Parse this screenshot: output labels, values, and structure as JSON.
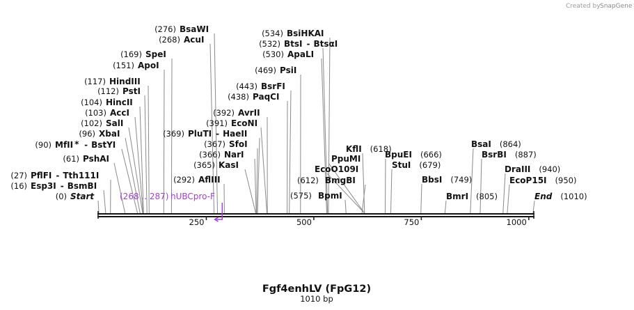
{
  "credit": {
    "text": "Created by",
    "brand": "SnapGene"
  },
  "plasmid": {
    "name": "Fgf4enhLV (FpG12)",
    "length_label": "1010 bp",
    "length": 1010
  },
  "ruler": {
    "ticks": [
      {
        "value": 250,
        "label": "250"
      },
      {
        "value": 500,
        "label": "500"
      },
      {
        "value": 750,
        "label": "750"
      },
      {
        "value": 1000,
        "label": "1000"
      }
    ]
  },
  "feature": {
    "name": "hUBCpro-F",
    "range_label": "(268 .. 287)",
    "start": 268,
    "end": 287,
    "color": "#a040d0"
  },
  "sites": [
    {
      "name": "BsaWI",
      "pos": "(276)",
      "cut": 276,
      "star": false,
      "alt": ""
    },
    {
      "name": "AcuI",
      "pos": "(268)",
      "cut": 268,
      "star": false,
      "alt": ""
    },
    {
      "name": "SpeI",
      "pos": "(169)",
      "cut": 169,
      "star": false,
      "alt": ""
    },
    {
      "name": "ApoI",
      "pos": "(151)",
      "cut": 151,
      "star": false,
      "alt": ""
    },
    {
      "name": "HindIII",
      "pos": "(117)",
      "cut": 117,
      "star": false,
      "alt": ""
    },
    {
      "name": "PstI",
      "pos": "(112)",
      "cut": 112,
      "star": false,
      "alt": ""
    },
    {
      "name": "HincII",
      "pos": "(104)",
      "cut": 104,
      "star": false,
      "alt": ""
    },
    {
      "name": "AccI",
      "pos": "(103)",
      "cut": 103,
      "star": false,
      "alt": ""
    },
    {
      "name": "SalI",
      "pos": "(102)",
      "cut": 102,
      "star": false,
      "alt": ""
    },
    {
      "name": "XbaI",
      "pos": "(96)",
      "cut": 96,
      "star": false,
      "alt": ""
    },
    {
      "name": "MfII",
      "pos": "(90)",
      "cut": 90,
      "star": true,
      "alt": "BstYI"
    },
    {
      "name": "PshAI",
      "pos": "(61)",
      "cut": 61,
      "star": false,
      "alt": ""
    },
    {
      "name": "PflFI",
      "pos": "(27)",
      "cut": 27,
      "star": false,
      "alt": "Tth111I"
    },
    {
      "name": "Esp3I",
      "pos": "(16)",
      "cut": 16,
      "star": false,
      "alt": "BsmBI"
    },
    {
      "name": "Start",
      "pos": "(0)",
      "cut": 0,
      "star": false,
      "alt": ""
    },
    {
      "name": "PluTI",
      "pos": "(369)",
      "cut": 369,
      "star": false,
      "alt": "HaeII"
    },
    {
      "name": "AflIII",
      "pos": "(292)",
      "cut": 292,
      "star": false,
      "alt": ""
    },
    {
      "name": "AvrII",
      "pos": "(392)",
      "cut": 392,
      "star": false,
      "alt": ""
    },
    {
      "name": "EcoNI",
      "pos": "(391)",
      "cut": 391,
      "star": false,
      "alt": ""
    },
    {
      "name": "SfoI",
      "pos": "(367)",
      "cut": 367,
      "star": false,
      "alt": ""
    },
    {
      "name": "NarI",
      "pos": "(366)",
      "cut": 366,
      "star": false,
      "alt": ""
    },
    {
      "name": "KasI",
      "pos": "(365)",
      "cut": 365,
      "star": false,
      "alt": ""
    },
    {
      "name": "BsiHKAI",
      "pos": "(534)",
      "cut": 534,
      "star": false,
      "alt": ""
    },
    {
      "name": "BtsI",
      "pos": "(532)",
      "cut": 532,
      "star": false,
      "alt": "BtsαI"
    },
    {
      "name": "ApaLI",
      "pos": "(530)",
      "cut": 530,
      "star": false,
      "alt": ""
    },
    {
      "name": "PsiI",
      "pos": "(469)",
      "cut": 469,
      "star": false,
      "alt": ""
    },
    {
      "name": "BsrFI",
      "pos": "(443)",
      "cut": 443,
      "star": false,
      "alt": ""
    },
    {
      "name": "PaqCI",
      "pos": "(438)",
      "cut": 438,
      "star": false,
      "alt": ""
    },
    {
      "name": "KflI",
      "pos": "(618)",
      "cut": 618,
      "star": false,
      "alt": ""
    },
    {
      "name": "PpuMI",
      "pos": "",
      "cut": 618,
      "star": false,
      "alt": ""
    },
    {
      "name": "EcoO109I",
      "pos": "",
      "cut": 618,
      "star": false,
      "alt": ""
    },
    {
      "name": "BmgBI",
      "pos": "(612)",
      "cut": 612,
      "star": false,
      "alt": ""
    },
    {
      "name": "BpmI",
      "pos": "(575)",
      "cut": 575,
      "star": false,
      "alt": ""
    },
    {
      "name": "BpuEI",
      "pos": "(666)",
      "cut": 666,
      "star": false,
      "alt": ""
    },
    {
      "name": "StuI",
      "pos": "(679)",
      "cut": 679,
      "star": false,
      "alt": ""
    },
    {
      "name": "BbsI",
      "pos": "(749)",
      "cut": 749,
      "star": false,
      "alt": ""
    },
    {
      "name": "BmrI",
      "pos": "(805)",
      "cut": 805,
      "star": false,
      "alt": ""
    },
    {
      "name": "BsaI",
      "pos": "(864)",
      "cut": 864,
      "star": false,
      "alt": ""
    },
    {
      "name": "BsrBI",
      "pos": "(887)",
      "cut": 887,
      "star": false,
      "alt": ""
    },
    {
      "name": "DraIII",
      "pos": "(940)",
      "cut": 940,
      "star": false,
      "alt": ""
    },
    {
      "name": "EcoP15I",
      "pos": "(950)",
      "cut": 950,
      "star": false,
      "alt": ""
    },
    {
      "name": "End",
      "pos": "(1010)",
      "cut": 1010,
      "star": false,
      "alt": ""
    }
  ]
}
